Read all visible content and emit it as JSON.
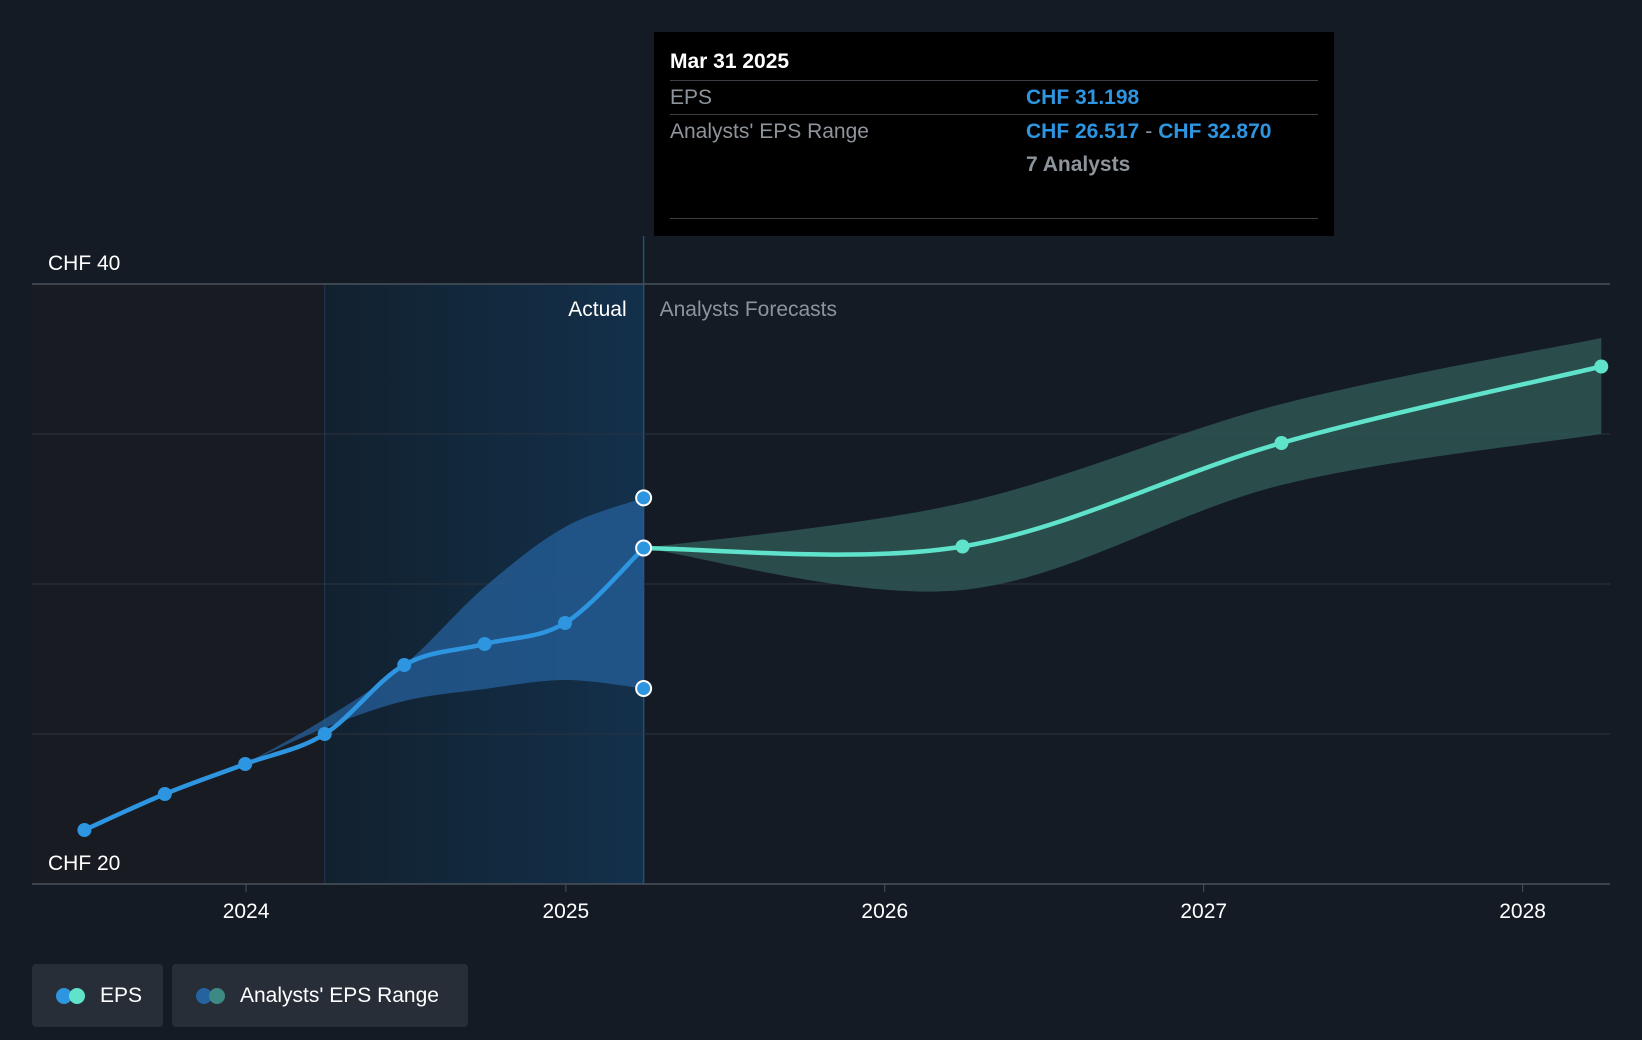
{
  "tooltip": {
    "date": "Mar 31 2025",
    "eps_label": "EPS",
    "eps_value": "CHF 31.198",
    "range_label": "Analysts' EPS Range",
    "range_low": "CHF 26.517",
    "range_sep": "-",
    "range_high": "CHF 32.870",
    "analysts": "7 Analysts"
  },
  "regions": {
    "actual": "Actual",
    "forecast": "Analysts Forecasts"
  },
  "legend": {
    "eps": "EPS",
    "range": "Analysts' EPS Range"
  },
  "colors": {
    "background": "#151b24",
    "eps_actual": "#2e95e0",
    "eps_forecast": "#5fe3cb",
    "range_actual": "#2563a0",
    "range_forecast": "#2e5653"
  },
  "chart_data": {
    "type": "line",
    "ylim": [
      20,
      40
    ],
    "yticks": [
      {
        "value": 20,
        "label": "CHF 20"
      },
      {
        "value": 40,
        "label": "CHF 40"
      }
    ],
    "ygrid": [
      20,
      25,
      30,
      35,
      40
    ],
    "xlim": [
      "2023-05-01",
      "2028-04-10"
    ],
    "xticks": [
      {
        "date": "2024-01-01",
        "label": "2024"
      },
      {
        "date": "2025-01-01",
        "label": "2025"
      },
      {
        "date": "2026-01-01",
        "label": "2026"
      },
      {
        "date": "2027-01-01",
        "label": "2027"
      },
      {
        "date": "2028-01-01",
        "label": "2028"
      }
    ],
    "highlight_start": "2024-03-31",
    "divider": "2025-03-31",
    "series": [
      {
        "name": "EPS",
        "kind": "actual",
        "points": [
          {
            "date": "2023-06-30",
            "value": 21.8
          },
          {
            "date": "2023-09-30",
            "value": 23.0
          },
          {
            "date": "2023-12-31",
            "value": 24.0
          },
          {
            "date": "2024-03-31",
            "value": 25.0
          },
          {
            "date": "2024-06-30",
            "value": 27.3
          },
          {
            "date": "2024-09-30",
            "value": 28.0
          },
          {
            "date": "2024-12-31",
            "value": 28.7
          },
          {
            "date": "2025-03-31",
            "value": 31.198
          }
        ]
      },
      {
        "name": "EPS",
        "kind": "forecast",
        "points": [
          {
            "date": "2025-03-31",
            "value": 31.198
          },
          {
            "date": "2026-03-31",
            "value": 31.25
          },
          {
            "date": "2027-03-31",
            "value": 34.7
          },
          {
            "date": "2028-03-31",
            "value": 37.25
          }
        ]
      }
    ],
    "ranges": [
      {
        "name": "Analysts' EPS Range",
        "kind": "actual",
        "points": [
          {
            "date": "2023-12-31",
            "low": 24.0,
            "high": 24.0
          },
          {
            "date": "2024-03-31",
            "low": 25.2,
            "high": 25.5
          },
          {
            "date": "2024-06-30",
            "low": 26.1,
            "high": 27.3
          },
          {
            "date": "2024-09-30",
            "low": 26.5,
            "high": 29.9
          },
          {
            "date": "2024-12-31",
            "low": 26.8,
            "high": 31.9
          },
          {
            "date": "2025-03-31",
            "low": 26.517,
            "high": 32.87
          }
        ]
      },
      {
        "name": "Analysts' EPS Range",
        "kind": "forecast",
        "points": [
          {
            "date": "2025-03-31",
            "low": 31.198,
            "high": 31.198
          },
          {
            "date": "2026-03-31",
            "low": 29.8,
            "high": 32.7
          },
          {
            "date": "2027-03-31",
            "low": 33.3,
            "high": 36.0
          },
          {
            "date": "2028-03-31",
            "low": 35.0,
            "high": 38.2
          }
        ]
      }
    ],
    "marked_values": [
      32.87,
      31.198,
      26.517
    ]
  }
}
